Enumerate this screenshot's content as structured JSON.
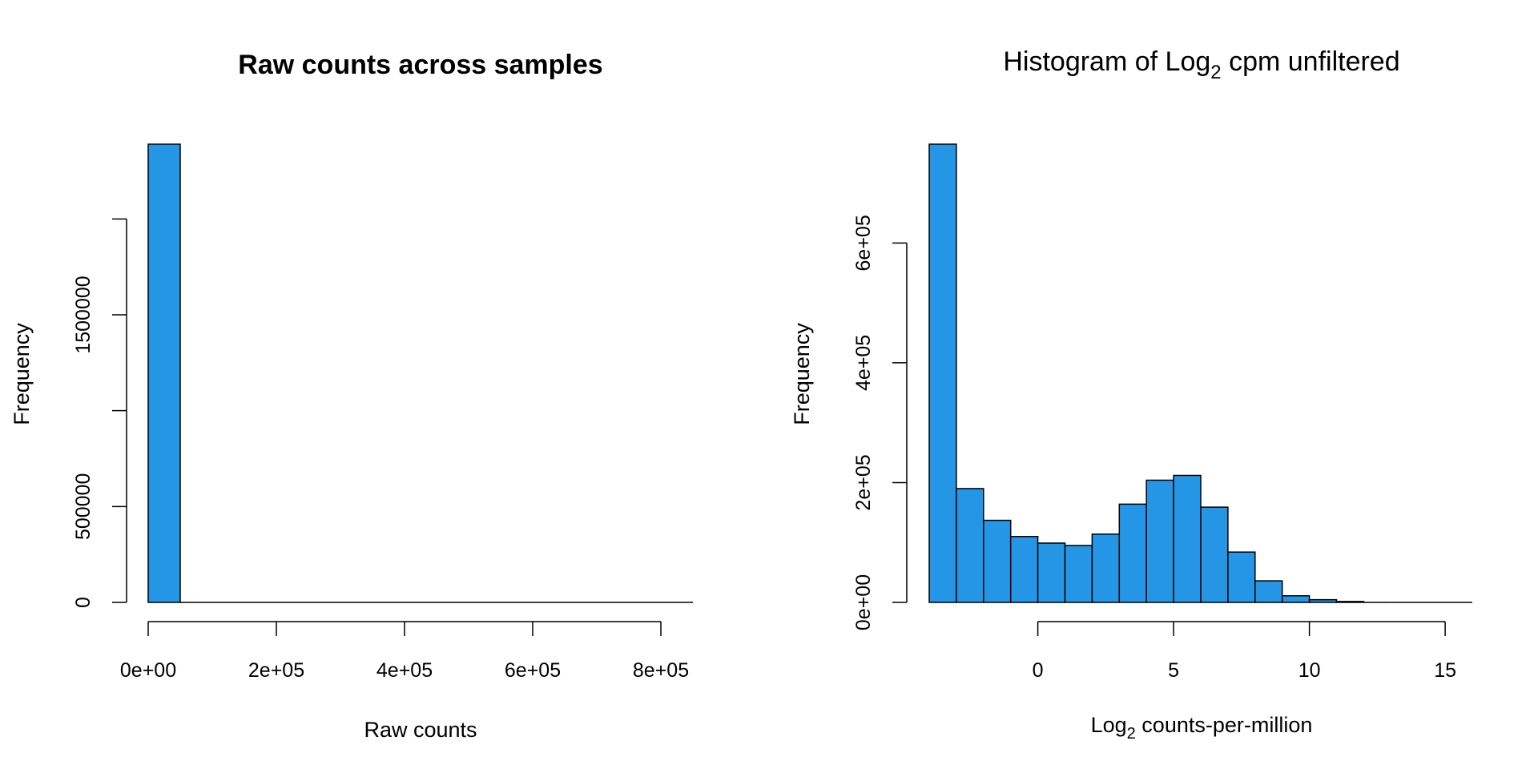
{
  "chart_data": [
    {
      "type": "bar",
      "title": "Raw counts across samples",
      "xlabel": "Raw counts",
      "ylabel": "Frequency",
      "bar_color": "#2596E6",
      "bins": [
        {
          "x0": 0,
          "x1": 50000,
          "count": 2390000
        },
        {
          "x0": 50000,
          "x1": 850000,
          "count": 0
        }
      ],
      "xlim": [
        0,
        850000
      ],
      "ylim": [
        0,
        2390000
      ],
      "x_ticks": [
        0,
        200000,
        400000,
        600000,
        800000
      ],
      "x_tick_labels": [
        "0e+00",
        "2e+05",
        "4e+05",
        "6e+05",
        "8e+05"
      ],
      "y_ticks": [
        0,
        500000,
        1000000,
        1500000,
        2000000
      ],
      "y_tick_labels": [
        "0",
        "500000",
        "",
        "1500000",
        ""
      ]
    },
    {
      "type": "bar",
      "title_parts": [
        "Histogram of Log",
        "2",
        " cpm unfiltered"
      ],
      "xlabel_parts": [
        "Log",
        "2",
        " counts-per-million"
      ],
      "ylabel": "Frequency",
      "bar_color": "#2596E6",
      "bins": [
        {
          "x0": -4,
          "x1": -3,
          "count": 765000
        },
        {
          "x0": -3,
          "x1": -2,
          "count": 190000
        },
        {
          "x0": -2,
          "x1": -1,
          "count": 137000
        },
        {
          "x0": -1,
          "x1": 0,
          "count": 110000
        },
        {
          "x0": 0,
          "x1": 1,
          "count": 99000
        },
        {
          "x0": 1,
          "x1": 2,
          "count": 95000
        },
        {
          "x0": 2,
          "x1": 3,
          "count": 114000
        },
        {
          "x0": 3,
          "x1": 4,
          "count": 164000
        },
        {
          "x0": 4,
          "x1": 5,
          "count": 204000
        },
        {
          "x0": 5,
          "x1": 6,
          "count": 212000
        },
        {
          "x0": 6,
          "x1": 7,
          "count": 159000
        },
        {
          "x0": 7,
          "x1": 8,
          "count": 84000
        },
        {
          "x0": 8,
          "x1": 9,
          "count": 36000
        },
        {
          "x0": 9,
          "x1": 10,
          "count": 11000
        },
        {
          "x0": 10,
          "x1": 11,
          "count": 4500
        },
        {
          "x0": 11,
          "x1": 12,
          "count": 1500
        },
        {
          "x0": 12,
          "x1": 13,
          "count": 500
        },
        {
          "x0": 13,
          "x1": 14,
          "count": 200
        },
        {
          "x0": 14,
          "x1": 15,
          "count": 100
        },
        {
          "x0": 15,
          "x1": 16,
          "count": 50
        }
      ],
      "xlim": [
        -4,
        16
      ],
      "ylim": [
        0,
        765000
      ],
      "x_ticks": [
        0,
        5,
        10,
        15
      ],
      "x_tick_labels": [
        "0",
        "5",
        "10",
        "15"
      ],
      "y_ticks": [
        0,
        200000,
        400000,
        600000
      ],
      "y_tick_labels": [
        "0e+00",
        "2e+05",
        "4e+05",
        "6e+05"
      ]
    }
  ]
}
